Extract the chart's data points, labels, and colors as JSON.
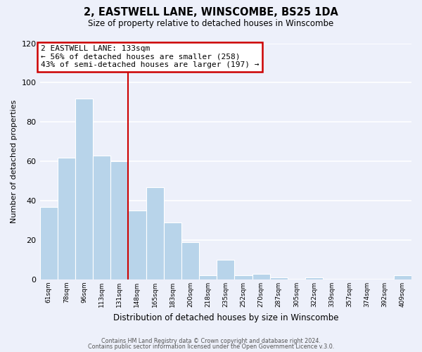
{
  "title": "2, EASTWELL LANE, WINSCOMBE, BS25 1DA",
  "subtitle": "Size of property relative to detached houses in Winscombe",
  "xlabel": "Distribution of detached houses by size in Winscombe",
  "ylabel": "Number of detached properties",
  "categories": [
    "61sqm",
    "78sqm",
    "96sqm",
    "113sqm",
    "131sqm",
    "148sqm",
    "165sqm",
    "183sqm",
    "200sqm",
    "218sqm",
    "235sqm",
    "252sqm",
    "270sqm",
    "287sqm",
    "305sqm",
    "322sqm",
    "339sqm",
    "357sqm",
    "374sqm",
    "392sqm",
    "409sqm"
  ],
  "values": [
    37,
    62,
    92,
    63,
    60,
    35,
    47,
    29,
    19,
    2,
    10,
    2,
    3,
    1,
    0,
    1,
    0,
    0,
    0,
    0,
    2
  ],
  "bar_color": "#b8d4ea",
  "bar_edge_color": "#ffffff",
  "vline_index": 4,
  "vline_color": "#cc0000",
  "ylim": [
    0,
    120
  ],
  "yticks": [
    0,
    20,
    40,
    60,
    80,
    100,
    120
  ],
  "annotation_title": "2 EASTWELL LANE: 133sqm",
  "annotation_line1": "← 56% of detached houses are smaller (258)",
  "annotation_line2": "43% of semi-detached houses are larger (197) →",
  "annotation_box_color": "#ffffff",
  "annotation_box_edge": "#cc0000",
  "footer1": "Contains HM Land Registry data © Crown copyright and database right 2024.",
  "footer2": "Contains public sector information licensed under the Open Government Licence v.3.0.",
  "background_color": "#edf0fa",
  "grid_color": "#ffffff"
}
